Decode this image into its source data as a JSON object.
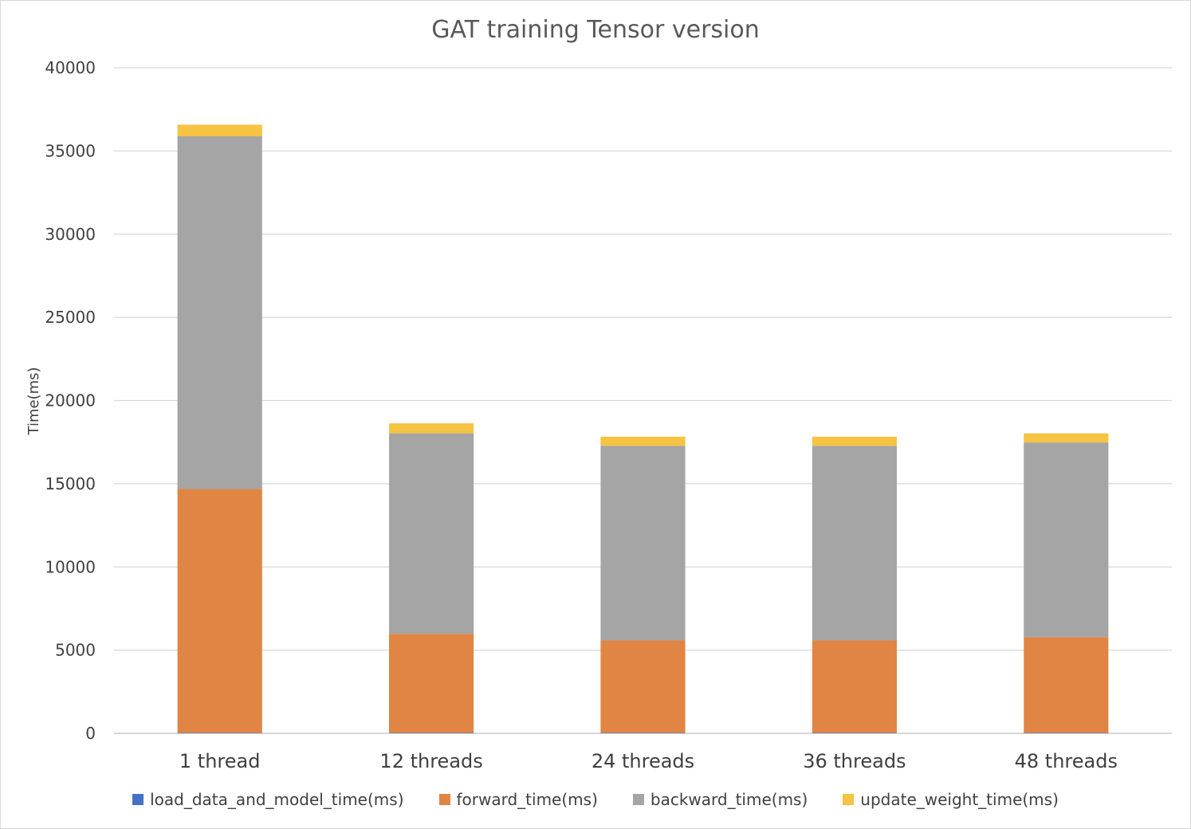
{
  "chart_data": {
    "type": "bar",
    "stacked": true,
    "title": "GAT training Tensor version",
    "ylabel": "Time(ms)",
    "xlabel": "",
    "ylim": [
      0,
      40000
    ],
    "yticks": [
      0,
      5000,
      10000,
      15000,
      20000,
      25000,
      30000,
      35000,
      40000
    ],
    "grid": true,
    "legend_position": "bottom",
    "categories": [
      "1 thread",
      "12 threads",
      "24 threads",
      "36 threads",
      "48 threads"
    ],
    "series": [
      {
        "name": "load_data_and_model_time(ms)",
        "color": "#4472C4",
        "values": [
          30,
          30,
          30,
          30,
          30
        ]
      },
      {
        "name": "forward_time(ms)",
        "color": "#E08543",
        "values": [
          14650,
          5950,
          5550,
          5550,
          5750
        ]
      },
      {
        "name": "backward_time(ms)",
        "color": "#A5A5A5",
        "values": [
          21200,
          12050,
          11700,
          11700,
          11700
        ]
      },
      {
        "name": "update_weight_time(ms)",
        "color": "#F6C342",
        "values": [
          700,
          600,
          550,
          550,
          550
        ]
      }
    ]
  }
}
